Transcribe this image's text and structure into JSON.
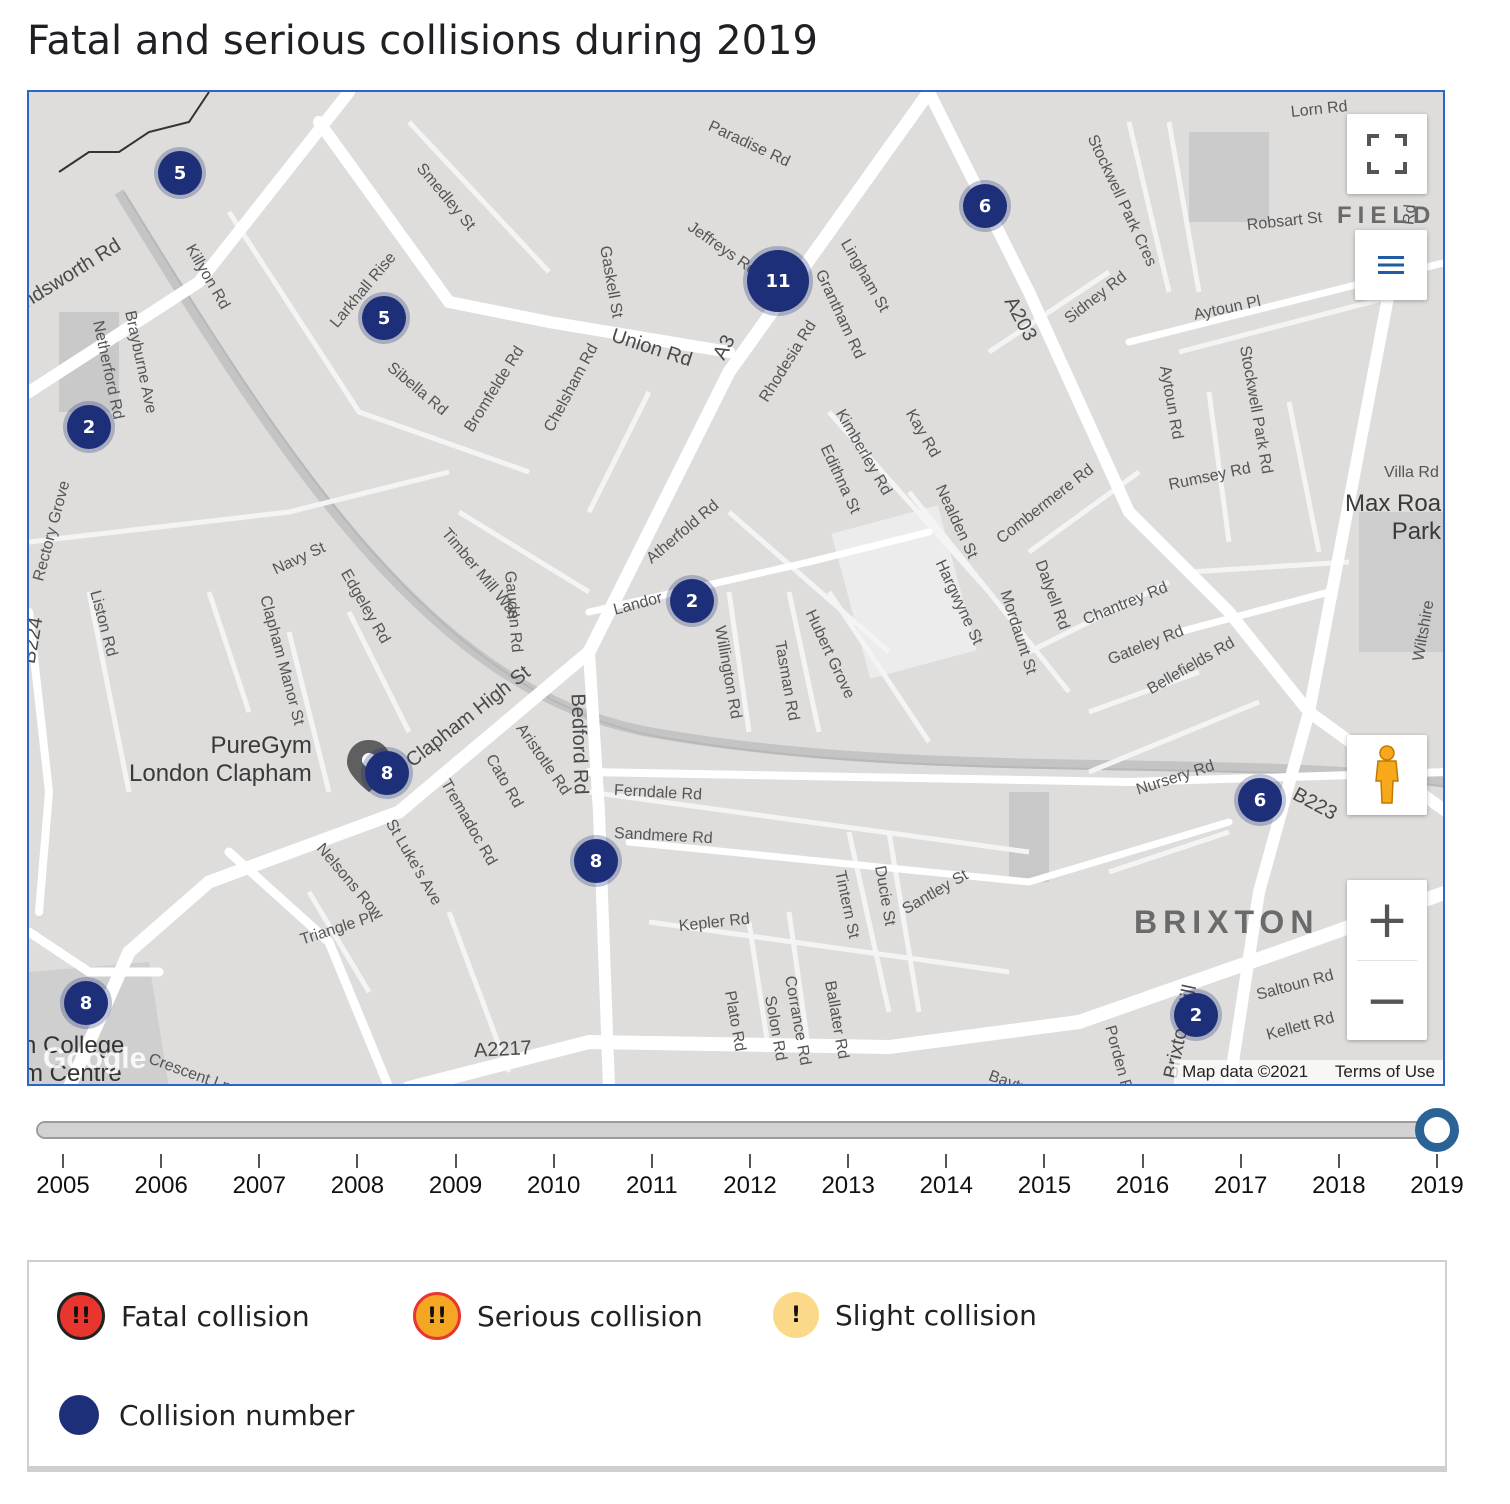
{
  "title": "Fatal and serious collisions during 2019",
  "map": {
    "area_labels": [
      {
        "text": "BRIXTON"
      },
      {
        "text": "FIELD"
      }
    ],
    "place_labels": [
      {
        "text": "PureGym\nLondon Clapham"
      },
      {
        "text": "Max Roa\nPark"
      },
      {
        "text": "n College\nm Centre"
      }
    ],
    "road_labels": [
      "Union Rd",
      "A3",
      "A203",
      "Clapham High St",
      "Bedford Rd",
      "Ferndale Rd",
      "Sandmere Rd",
      "A2217",
      "B223",
      "B224",
      "Kepler Rd",
      "Triangle Pl",
      "Nelsons Row",
      "St Luke's Ave",
      "Tremadoc Rd",
      "Cato Rd",
      "Aristotle Rd",
      "Clapham Manor St",
      "Edgeley Rd",
      "Navy St",
      "Timber Mill Way",
      "Gauden Rd",
      "Liston Rd",
      "Rectory Grove",
      "Bromfelde Rd",
      "Chelsham Rd",
      "Sibella Rd",
      "Killyon Rd",
      "Netherford Rd",
      "Brayburne Ave",
      "Smedley St",
      "Gaskell St",
      "Jeffreys Rd",
      "Paradise Rd",
      "Grantham Rd",
      "Lingham St",
      "Rhodesia Rd",
      "Kimberley Rd",
      "Edithna St",
      "Kay Rd",
      "Nealden St",
      "Hargwyne St",
      "Mordaunt St",
      "Dalyell Rd",
      "Combermere Rd",
      "Chantrey Rd",
      "Gateley Rd",
      "Bellefields Rd",
      "Rumsey Rd",
      "Villa Rd",
      "Sidney Rd",
      "Aytoun Pl",
      "Aytoun Rd",
      "Stockwell Park Rd",
      "Robsart St",
      "Lorn Rd",
      "Overton Rd",
      "Stockwell Park Cres",
      "Atherfold Rd",
      "Landor",
      "Willington Rd",
      "Tasman Rd",
      "Hubert Grove",
      "Nursery Rd",
      "Tintern St",
      "Ducie St",
      "Santley St",
      "Plato Rd",
      "Solon Rd",
      "Corrance Rd",
      "Ballater Rd",
      "Porden Rd",
      "Baytree Rd",
      "Saltoun Rd",
      "Kellett Rd",
      "Crescent Ln",
      "ndsworth Rd",
      "Larkhall Rise",
      "Brixton Hill",
      "Wiltshire"
    ],
    "clusters": [
      {
        "count": "5"
      },
      {
        "count": "5"
      },
      {
        "count": "2"
      },
      {
        "count": "11"
      },
      {
        "count": "6"
      },
      {
        "count": "2"
      },
      {
        "count": "8"
      },
      {
        "count": "8"
      },
      {
        "count": "6"
      },
      {
        "count": "8"
      },
      {
        "count": "2"
      }
    ],
    "attribution": {
      "map_data": "Map data ©2021",
      "terms": "Terms of Use"
    },
    "google_logo": "Google",
    "controls": {
      "fullscreen": "fullscreen-icon",
      "layers": "menu-icon",
      "pegman": "pegman-icon",
      "zoom_in": "+",
      "zoom_out": "−"
    }
  },
  "slider": {
    "years": [
      "2005",
      "2006",
      "2007",
      "2008",
      "2009",
      "2010",
      "2011",
      "2012",
      "2013",
      "2014",
      "2015",
      "2016",
      "2017",
      "2018",
      "2019"
    ],
    "selected": "2019"
  },
  "legend": {
    "items": [
      {
        "label": "Fatal collision",
        "glyph": "!!",
        "color": "#e8362e"
      },
      {
        "label": "Serious collision",
        "glyph": "!!",
        "color": "#f5a623"
      },
      {
        "label": "Slight collision",
        "glyph": "!",
        "color": "#fbd988"
      },
      {
        "label": "Collision number",
        "glyph": "",
        "color": "#1d2f78"
      }
    ]
  }
}
